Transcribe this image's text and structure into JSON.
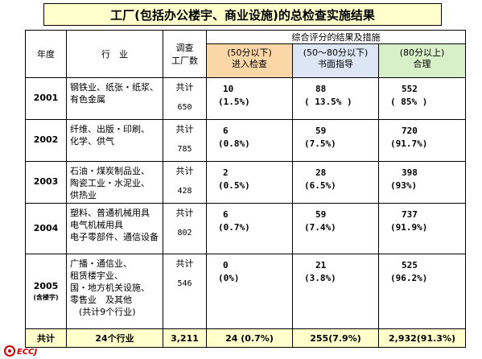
{
  "title": "工厂(包括办公楼宇、商业设施)的总检查实施结果",
  "header": {
    "year": "年度",
    "industry": "行　业",
    "count_line1": "调查",
    "count_line2": "工厂数",
    "results_group": "综合评分的结果及措施",
    "col1_line1": "(50分以下)",
    "col1_line2": "进入检查",
    "col2_line1": "(50～80分以下)",
    "col2_line2": "书面指导",
    "col3_line1": "(80分以上)",
    "col3_line2": "合理"
  },
  "rows": [
    {
      "year": "2001",
      "year_note": "",
      "industry": [
        "钢铁业、纸张・纸浆、",
        "有色金属"
      ],
      "count_label": "共计",
      "count": "650",
      "c1": "10",
      "c1p": "(1.5%)",
      "c2": "88",
      "c2p": "( 13.5% )",
      "c3": "552",
      "c3p": "( 85% )"
    },
    {
      "year": "2002",
      "year_note": "",
      "industry": [
        "纤维、出版・印刷、",
        "化学、供气"
      ],
      "count_label": "共计",
      "count": "785",
      "c1": "6",
      "c1p": "(0.8%)",
      "c2": "59",
      "c2p": "(7.5%)",
      "c3": "720",
      "c3p": "(91.7%)"
    },
    {
      "year": "2003",
      "year_note": "",
      "industry": [
        "石油・煤炭制品业、",
        "陶瓷工业・水泥业、",
        "供热业"
      ],
      "count_label": "共计",
      "count": "428",
      "c1": "2",
      "c1p": "(0.5%)",
      "c2": "28",
      "c2p": "(6.5%)",
      "c3": "398",
      "c3p": "(93%)"
    },
    {
      "year": "2004",
      "year_note": "",
      "industry": [
        "塑料、普通机械用具",
        "电气机械用具",
        "电子零部件、通信设备"
      ],
      "count_label": "共计",
      "count": "802",
      "c1": "6",
      "c1p": "(0.7%)",
      "c2": "59",
      "c2p": "(7.4%)",
      "c3": "737",
      "c3p": "(91.9%)"
    },
    {
      "year": "2005",
      "year_note": "(含楼宇)",
      "industry": [
        "广播・通信业、",
        "租赁楼宇业、",
        "国・地方机关设施、",
        "零售业　及其他",
        "　(共计9个行业)"
      ],
      "count_label": "共计",
      "count": "546",
      "c1": "0",
      "c1p": "(0%)",
      "c2": "21",
      "c2p": "(3.8%)",
      "c3": "525",
      "c3p": "(96.2%)"
    }
  ],
  "total": {
    "label": "共计",
    "industry": "24个行业",
    "count": "3,211",
    "c1": "24 (0.7%)",
    "c2": "255(7.9%)",
    "c3": "2,932(91.3%)"
  },
  "logo": {
    "text": "ECCJ",
    "color": "#cc0000"
  }
}
